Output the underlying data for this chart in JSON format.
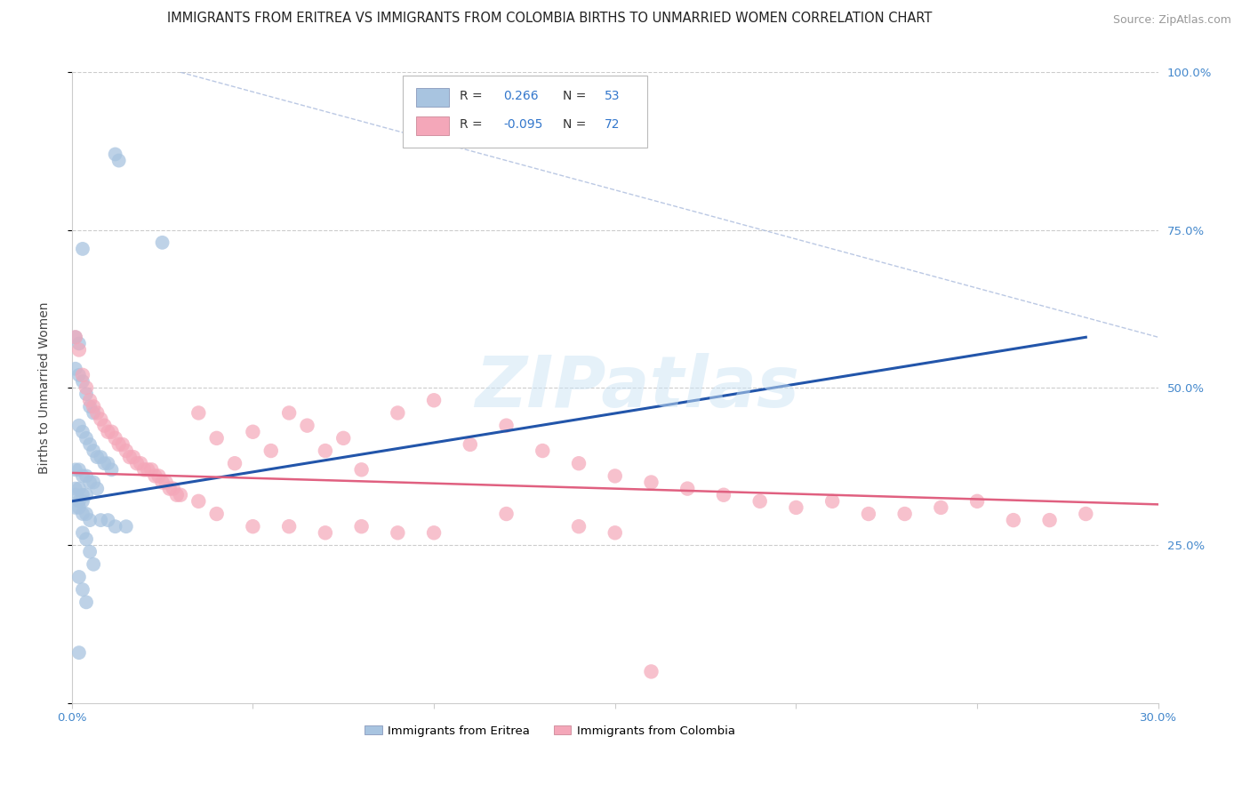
{
  "title": "IMMIGRANTS FROM ERITREA VS IMMIGRANTS FROM COLOMBIA BIRTHS TO UNMARRIED WOMEN CORRELATION CHART",
  "source": "Source: ZipAtlas.com",
  "ylabel": "Births to Unmarried Women",
  "x_min": 0.0,
  "x_max": 0.3,
  "y_min": 0.0,
  "y_max": 1.0,
  "eritrea_color": "#a8c4e0",
  "colombia_color": "#f4a7b9",
  "eritrea_R": 0.266,
  "eritrea_N": 53,
  "colombia_R": -0.095,
  "colombia_N": 72,
  "legend_label1": "Immigrants from Eritrea",
  "legend_label2": "Immigrants from Colombia",
  "watermark": "ZIPatlas",
  "blue_line": [
    [
      0.0,
      0.28
    ],
    [
      0.32,
      0.58
    ]
  ],
  "pink_line": [
    [
      0.0,
      0.3
    ],
    [
      0.365,
      0.315
    ]
  ],
  "dash_line": [
    [
      0.03,
      0.3
    ],
    [
      1.0,
      0.58
    ]
  ],
  "eritrea_x": [
    0.012,
    0.013,
    0.003,
    0.025,
    0.001,
    0.002,
    0.001,
    0.002,
    0.003,
    0.004,
    0.005,
    0.006,
    0.002,
    0.003,
    0.004,
    0.005,
    0.006,
    0.007,
    0.008,
    0.009,
    0.01,
    0.011,
    0.001,
    0.002,
    0.003,
    0.004,
    0.005,
    0.006,
    0.007,
    0.001,
    0.002,
    0.003,
    0.004,
    0.001,
    0.002,
    0.003,
    0.001,
    0.002,
    0.003,
    0.004,
    0.005,
    0.008,
    0.01,
    0.012,
    0.015,
    0.003,
    0.004,
    0.005,
    0.006,
    0.002,
    0.003,
    0.004,
    0.002
  ],
  "eritrea_y": [
    0.87,
    0.86,
    0.72,
    0.73,
    0.58,
    0.57,
    0.53,
    0.52,
    0.51,
    0.49,
    0.47,
    0.46,
    0.44,
    0.43,
    0.42,
    0.41,
    0.4,
    0.39,
    0.39,
    0.38,
    0.38,
    0.37,
    0.37,
    0.37,
    0.36,
    0.36,
    0.35,
    0.35,
    0.34,
    0.34,
    0.34,
    0.33,
    0.33,
    0.33,
    0.32,
    0.32,
    0.31,
    0.31,
    0.3,
    0.3,
    0.29,
    0.29,
    0.29,
    0.28,
    0.28,
    0.27,
    0.26,
    0.24,
    0.22,
    0.2,
    0.18,
    0.16,
    0.08
  ],
  "colombia_x": [
    0.001,
    0.002,
    0.003,
    0.004,
    0.005,
    0.006,
    0.007,
    0.008,
    0.009,
    0.01,
    0.011,
    0.012,
    0.013,
    0.014,
    0.015,
    0.016,
    0.017,
    0.018,
    0.019,
    0.02,
    0.021,
    0.022,
    0.023,
    0.024,
    0.025,
    0.026,
    0.027,
    0.028,
    0.029,
    0.03,
    0.035,
    0.04,
    0.045,
    0.05,
    0.055,
    0.06,
    0.065,
    0.07,
    0.075,
    0.08,
    0.09,
    0.1,
    0.11,
    0.12,
    0.13,
    0.14,
    0.15,
    0.16,
    0.17,
    0.18,
    0.19,
    0.2,
    0.21,
    0.22,
    0.23,
    0.24,
    0.25,
    0.26,
    0.27,
    0.28,
    0.035,
    0.04,
    0.05,
    0.06,
    0.07,
    0.08,
    0.09,
    0.1,
    0.12,
    0.14,
    0.15,
    0.16
  ],
  "colombia_y": [
    0.58,
    0.56,
    0.52,
    0.5,
    0.48,
    0.47,
    0.46,
    0.45,
    0.44,
    0.43,
    0.43,
    0.42,
    0.41,
    0.41,
    0.4,
    0.39,
    0.39,
    0.38,
    0.38,
    0.37,
    0.37,
    0.37,
    0.36,
    0.36,
    0.35,
    0.35,
    0.34,
    0.34,
    0.33,
    0.33,
    0.46,
    0.42,
    0.38,
    0.43,
    0.4,
    0.46,
    0.44,
    0.4,
    0.42,
    0.37,
    0.46,
    0.48,
    0.41,
    0.44,
    0.4,
    0.38,
    0.36,
    0.35,
    0.34,
    0.33,
    0.32,
    0.31,
    0.32,
    0.3,
    0.3,
    0.31,
    0.32,
    0.29,
    0.29,
    0.3,
    0.32,
    0.3,
    0.28,
    0.28,
    0.27,
    0.28,
    0.27,
    0.27,
    0.3,
    0.28,
    0.27,
    0.05
  ]
}
